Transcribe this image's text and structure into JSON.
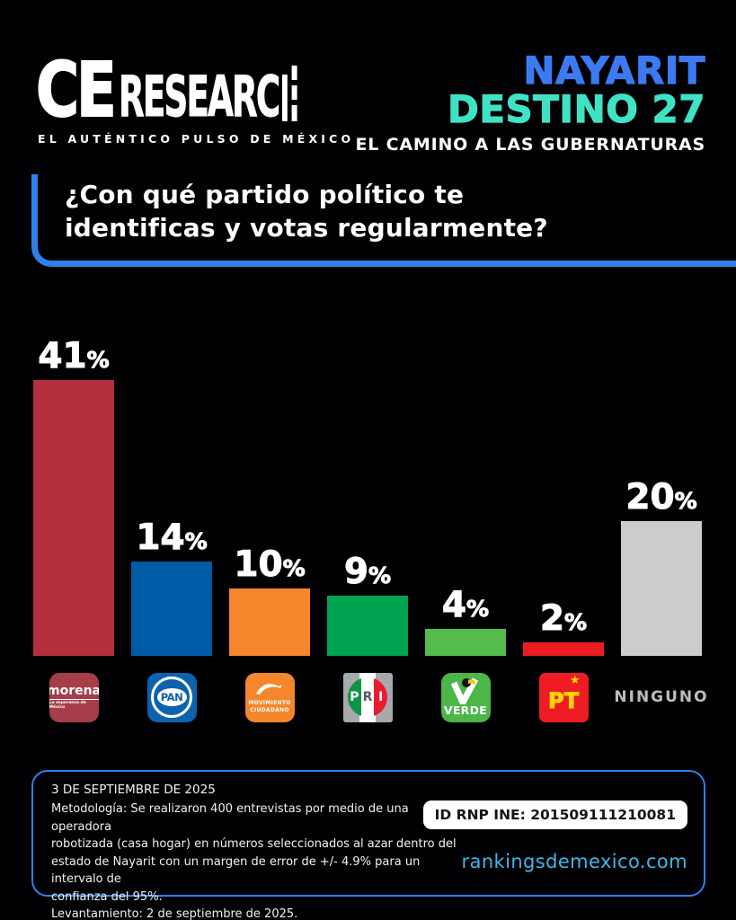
{
  "header": {
    "logo": {
      "ce": "CE",
      "research": "RESEARC",
      "tagline": "EL AUTÉNTICO PULSO DE MÉXICO"
    },
    "state": "NAYARIT",
    "series": "DESTINO 27",
    "subtitle": "EL CAMINO A LAS GUBERNATURAS"
  },
  "question": {
    "line1": "¿Con qué partido político te",
    "line2": "identificas y votas regularmente?"
  },
  "chart_data": {
    "type": "bar",
    "title": "¿Con qué partido político te identificas y votas regularmente?",
    "categories": [
      "MORENA",
      "PAN",
      "MOVIMIENTO CIUDADANO",
      "PRI",
      "VERDE",
      "PT",
      "NINGUNO"
    ],
    "keys": [
      "morena",
      "pan",
      "mc",
      "pri",
      "verde",
      "pt",
      "ninguno"
    ],
    "values": [
      41,
      14,
      10,
      9,
      4,
      2,
      20
    ],
    "unit": "%",
    "colors": [
      "#B42F3E",
      "#005BA6",
      "#F5862B",
      "#00A350",
      "#55BB4C",
      "#EC1C24",
      "#CCCCCC"
    ],
    "ylim": [
      0,
      45
    ],
    "grid": false,
    "value_labels": "above bars",
    "legend_position": "party logos below bars"
  },
  "logos": {
    "morena": {
      "name": "morena",
      "tagline": "La esperanza de México"
    },
    "pan": {
      "name": "PAN"
    },
    "mc": {
      "line1": "MOVIMIENTO",
      "line2": "CIUDADANO"
    },
    "pri": {
      "p": "P",
      "r": "R",
      "i": "I"
    },
    "verde": {
      "name": "VERDE"
    },
    "pt": {
      "name": "PT",
      "star": "★"
    },
    "none_label": "NINGUNO"
  },
  "footer": {
    "date": "3 DE SEPTIEMBRE DE 2025",
    "methodology": "Metodología: Se realizaron 400 entrevistas por medio de una operadora\nrobotizada (casa hogar) en números seleccionados al azar dentro del\nestado de Nayarit con un margen de error de +/- 4.9% para un intervalo de\nconfianza del 95%.\nLevantamiento: 2 de septiembre de 2025.",
    "id_label": "ID RNP INE: 201509111210081",
    "website": "rankingsdemexico.com"
  },
  "colors": {
    "accent_blue": "#2F80ED",
    "state_blue": "#3B7AF3",
    "series_teal": "#3FE2C5",
    "website_blue": "#41B6E8",
    "background": "#000000"
  }
}
